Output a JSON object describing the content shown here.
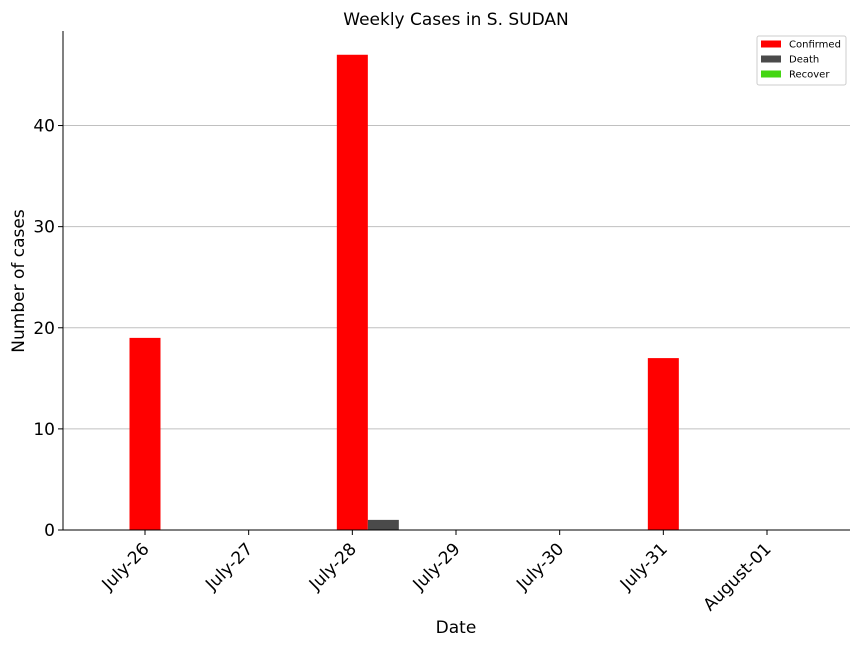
{
  "chart_data": {
    "type": "bar",
    "title": "Weekly Cases in S. SUDAN",
    "xlabel": "Date",
    "ylabel": "Number of cases",
    "categories": [
      "July-26",
      "July-27",
      "July-28",
      "July-29",
      "July-30",
      "July-31",
      "August-01"
    ],
    "series": [
      {
        "name": "Confirmed",
        "color": "#ff0000",
        "values": [
          19,
          0,
          47,
          0,
          0,
          17,
          0
        ]
      },
      {
        "name": "Death",
        "color": "#4a4a4a",
        "values": [
          0,
          0,
          1,
          0,
          0,
          0,
          0
        ]
      },
      {
        "name": "Recover",
        "color": "#44d612",
        "values": [
          0,
          0,
          0,
          0,
          0,
          0,
          0
        ]
      }
    ],
    "ylim": [
      0,
      49.35
    ],
    "yticks": [
      0,
      10,
      20,
      30,
      40
    ],
    "grid": "horizontal",
    "legend_position": "top-right"
  }
}
